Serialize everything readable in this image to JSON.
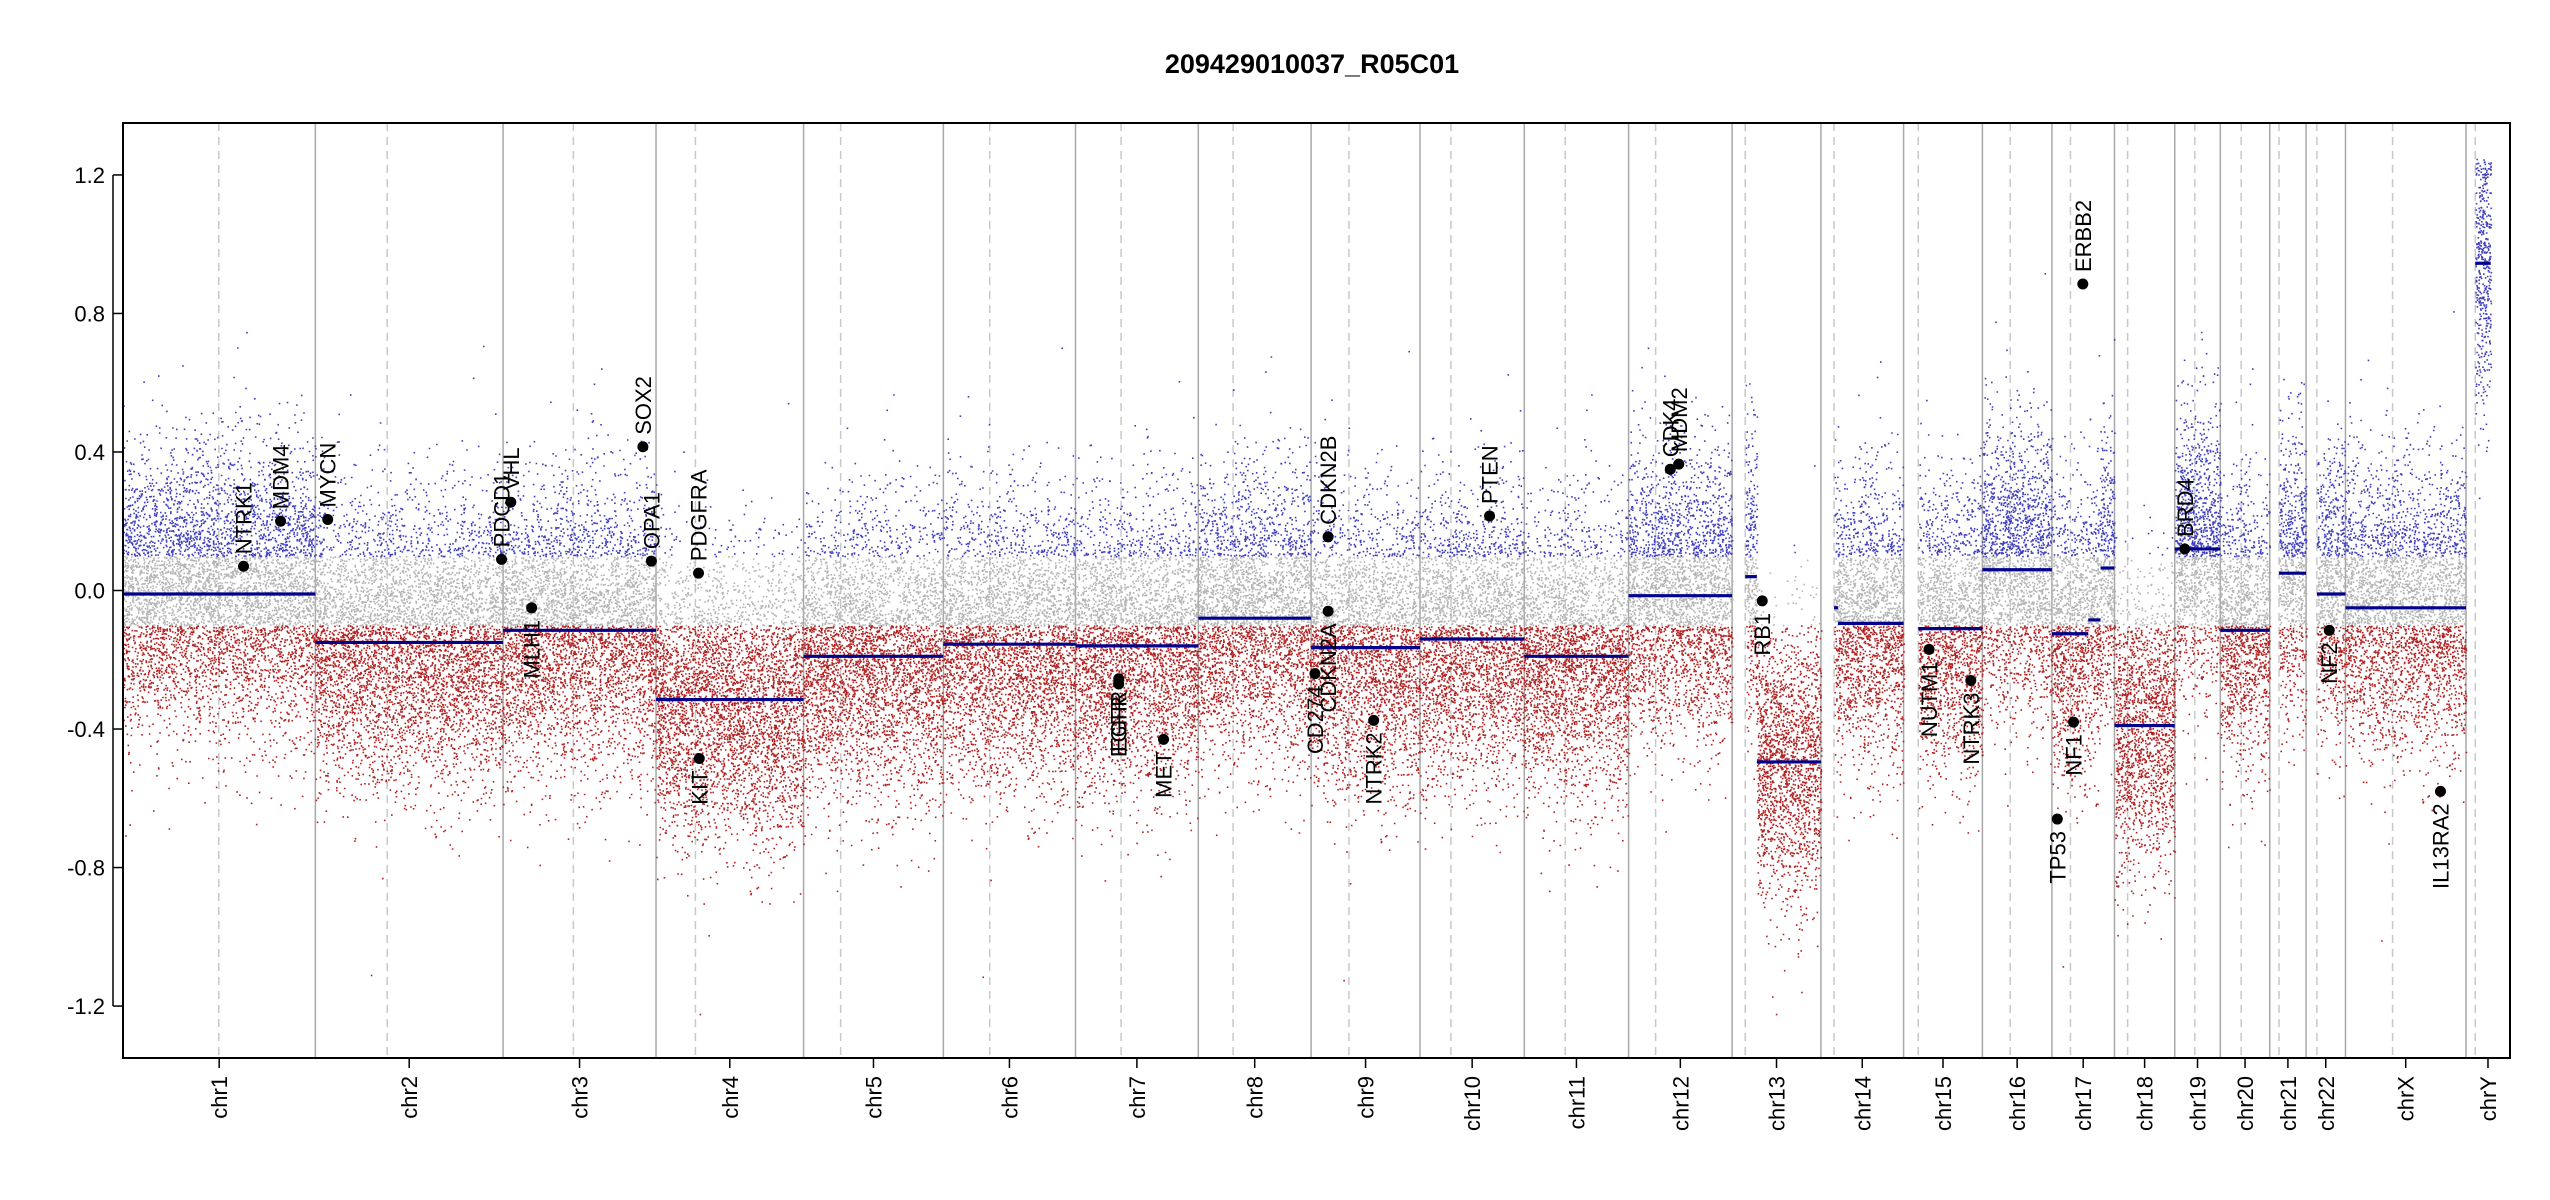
{
  "chart_data": {
    "type": "scatter",
    "title": "209429010037_R05C01",
    "xlabel": "",
    "ylabel": "",
    "ylim": [
      -1.35,
      1.35
    ],
    "y_ticks": [
      -1.2,
      -0.8,
      -0.4,
      0.0,
      0.4,
      0.8,
      1.2
    ],
    "y_tick_labels": [
      "-1.2",
      "-0.8",
      "-0.4",
      "0.0",
      "0.4",
      "0.8",
      "1.2"
    ],
    "grid": false,
    "legend": "none",
    "colors": {
      "gain": "#3f3fbf",
      "neutral": "#b4b4b4",
      "loss": "#b22222",
      "segment": "#00008b",
      "gene": "#000000",
      "boundary": "#a8a8a8",
      "centromere": "#c8c8c8"
    },
    "chromosomes": [
      {
        "name": "chr1",
        "start": 0,
        "end": 249,
        "centromere": 124
      },
      {
        "name": "chr2",
        "start": 249,
        "end": 492,
        "centromere": 342
      },
      {
        "name": "chr3",
        "start": 492,
        "end": 690,
        "centromere": 583
      },
      {
        "name": "chr4",
        "start": 690,
        "end": 881,
        "centromere": 741
      },
      {
        "name": "chr5",
        "start": 881,
        "end": 1062,
        "centromere": 929
      },
      {
        "name": "chr6",
        "start": 1062,
        "end": 1233,
        "centromere": 1122
      },
      {
        "name": "chr7",
        "start": 1233,
        "end": 1392,
        "centromere": 1292
      },
      {
        "name": "chr8",
        "start": 1392,
        "end": 1538,
        "centromere": 1437
      },
      {
        "name": "chr9",
        "start": 1538,
        "end": 1679,
        "centromere": 1587
      },
      {
        "name": "chr10",
        "start": 1679,
        "end": 1814,
        "centromere": 1719
      },
      {
        "name": "chr11",
        "start": 1814,
        "end": 1949,
        "centromere": 1867
      },
      {
        "name": "chr12",
        "start": 1949,
        "end": 2083,
        "centromere": 1984
      },
      {
        "name": "chr13",
        "start": 2083,
        "end": 2198,
        "centromere": 2100
      },
      {
        "name": "chr14",
        "start": 2198,
        "end": 2305,
        "centromere": 2215
      },
      {
        "name": "chr15",
        "start": 2305,
        "end": 2407,
        "centromere": 2324
      },
      {
        "name": "chr16",
        "start": 2407,
        "end": 2497,
        "centromere": 2443
      },
      {
        "name": "chr17",
        "start": 2497,
        "end": 2578,
        "centromere": 2521
      },
      {
        "name": "chr18",
        "start": 2578,
        "end": 2656,
        "centromere": 2595
      },
      {
        "name": "chr19",
        "start": 2656,
        "end": 2715,
        "centromere": 2682
      },
      {
        "name": "chr20",
        "start": 2715,
        "end": 2779,
        "centromere": 2742
      },
      {
        "name": "chr21",
        "start": 2779,
        "end": 2826,
        "centromere": 2791
      },
      {
        "name": "chr22",
        "start": 2826,
        "end": 2877,
        "centromere": 2840
      },
      {
        "name": "chrX",
        "start": 2877,
        "end": 3033,
        "centromere": 2938
      },
      {
        "name": "chrY",
        "start": 3033,
        "end": 3090,
        "centromere": 3045
      }
    ],
    "segments": [
      {
        "chr": "chr1",
        "start": 0,
        "end": 249,
        "value": -0.01
      },
      {
        "chr": "chr2",
        "start": 249,
        "end": 492,
        "value": -0.15
      },
      {
        "chr": "chr3",
        "start": 492,
        "end": 690,
        "value": -0.115
      },
      {
        "chr": "chr4",
        "start": 690,
        "end": 881,
        "value": -0.315
      },
      {
        "chr": "chr5",
        "start": 881,
        "end": 1062,
        "value": -0.19
      },
      {
        "chr": "chr6",
        "start": 1062,
        "end": 1233,
        "value": -0.155
      },
      {
        "chr": "chr7",
        "start": 1233,
        "end": 1392,
        "value": -0.16
      },
      {
        "chr": "chr8",
        "start": 1392,
        "end": 1538,
        "value": -0.08
      },
      {
        "chr": "chr9",
        "start": 1538,
        "end": 1679,
        "value": -0.165
      },
      {
        "chr": "chr10",
        "start": 1679,
        "end": 1814,
        "value": -0.14
      },
      {
        "chr": "chr11",
        "start": 1814,
        "end": 1949,
        "value": -0.19
      },
      {
        "chr": "chr12",
        "start": 1949,
        "end": 2083,
        "value": -0.015
      },
      {
        "chr": "chr13",
        "start": 2100,
        "end": 2115,
        "value": 0.04
      },
      {
        "chr": "chr13",
        "start": 2115,
        "end": 2198,
        "value": -0.495
      },
      {
        "chr": "chr14",
        "start": 2215,
        "end": 2220,
        "value": -0.05
      },
      {
        "chr": "chr14",
        "start": 2220,
        "end": 2305,
        "value": -0.095
      },
      {
        "chr": "chr15",
        "start": 2324,
        "end": 2407,
        "value": -0.11
      },
      {
        "chr": "chr16",
        "start": 2407,
        "end": 2497,
        "value": 0.06
      },
      {
        "chr": "chr17",
        "start": 2497,
        "end": 2544,
        "value": -0.125
      },
      {
        "chr": "chr17",
        "start": 2544,
        "end": 2560,
        "value": -0.085
      },
      {
        "chr": "chr17",
        "start": 2560,
        "end": 2578,
        "value": 0.065
      },
      {
        "chr": "chr18",
        "start": 2578,
        "end": 2656,
        "value": -0.39
      },
      {
        "chr": "chr19",
        "start": 2656,
        "end": 2715,
        "value": 0.12
      },
      {
        "chr": "chr20",
        "start": 2715,
        "end": 2779,
        "value": -0.115
      },
      {
        "chr": "chr21",
        "start": 2791,
        "end": 2826,
        "value": 0.05
      },
      {
        "chr": "chr22",
        "start": 2840,
        "end": 2877,
        "value": -0.01
      },
      {
        "chr": "chrX",
        "start": 2877,
        "end": 3033,
        "value": -0.05
      },
      {
        "chr": "chrY",
        "start": 3045,
        "end": 3065,
        "value": 0.945
      }
    ],
    "genes": [
      {
        "name": "NTRK1",
        "x": 156,
        "y": 0.07
      },
      {
        "name": "MDM4",
        "x": 204,
        "y": 0.2
      },
      {
        "name": "MYCN",
        "x": 265,
        "y": 0.205
      },
      {
        "name": "PDCD1",
        "x": 490,
        "y": 0.09
      },
      {
        "name": "VHL",
        "x": 502,
        "y": 0.255
      },
      {
        "name": "MLH1",
        "x": 529,
        "y": -0.05
      },
      {
        "name": "SOX2",
        "x": 673,
        "y": 0.415
      },
      {
        "name": "OPA1",
        "x": 684,
        "y": 0.085
      },
      {
        "name": "PDGFRA",
        "x": 745,
        "y": 0.05
      },
      {
        "name": "KIT",
        "x": 746,
        "y": -0.485
      },
      {
        "name": "EGFR",
        "x": 1289,
        "y": -0.27
      },
      {
        "name": "EGFR",
        "x": 1289,
        "y": -0.255
      },
      {
        "name": "MET",
        "x": 1347,
        "y": -0.43
      },
      {
        "name": "CDKN2B",
        "x": 1560,
        "y": 0.155
      },
      {
        "name": "CDKN2A",
        "x": 1560,
        "y": -0.06
      },
      {
        "name": "CD274",
        "x": 1543,
        "y": -0.24
      },
      {
        "name": "NTRK2",
        "x": 1619,
        "y": -0.375
      },
      {
        "name": "PTEN",
        "x": 1769,
        "y": 0.215
      },
      {
        "name": "CDK4",
        "x": 2003,
        "y": 0.35
      },
      {
        "name": "MDM2",
        "x": 2014,
        "y": 0.365
      },
      {
        "name": "RB1",
        "x": 2122,
        "y": -0.03
      },
      {
        "name": "NUTM1",
        "x": 2338,
        "y": -0.17
      },
      {
        "name": "NTRK3",
        "x": 2392,
        "y": -0.26
      },
      {
        "name": "TP53",
        "x": 2504,
        "y": -0.66
      },
      {
        "name": "NF1",
        "x": 2525,
        "y": -0.38
      },
      {
        "name": "ERBB2",
        "x": 2537,
        "y": 0.885
      },
      {
        "name": "BRD4",
        "x": 2669,
        "y": 0.12
      },
      {
        "name": "NF2",
        "x": 2856,
        "y": -0.115
      },
      {
        "name": "IL13RA2",
        "x": 3000,
        "y": -0.58
      }
    ]
  }
}
